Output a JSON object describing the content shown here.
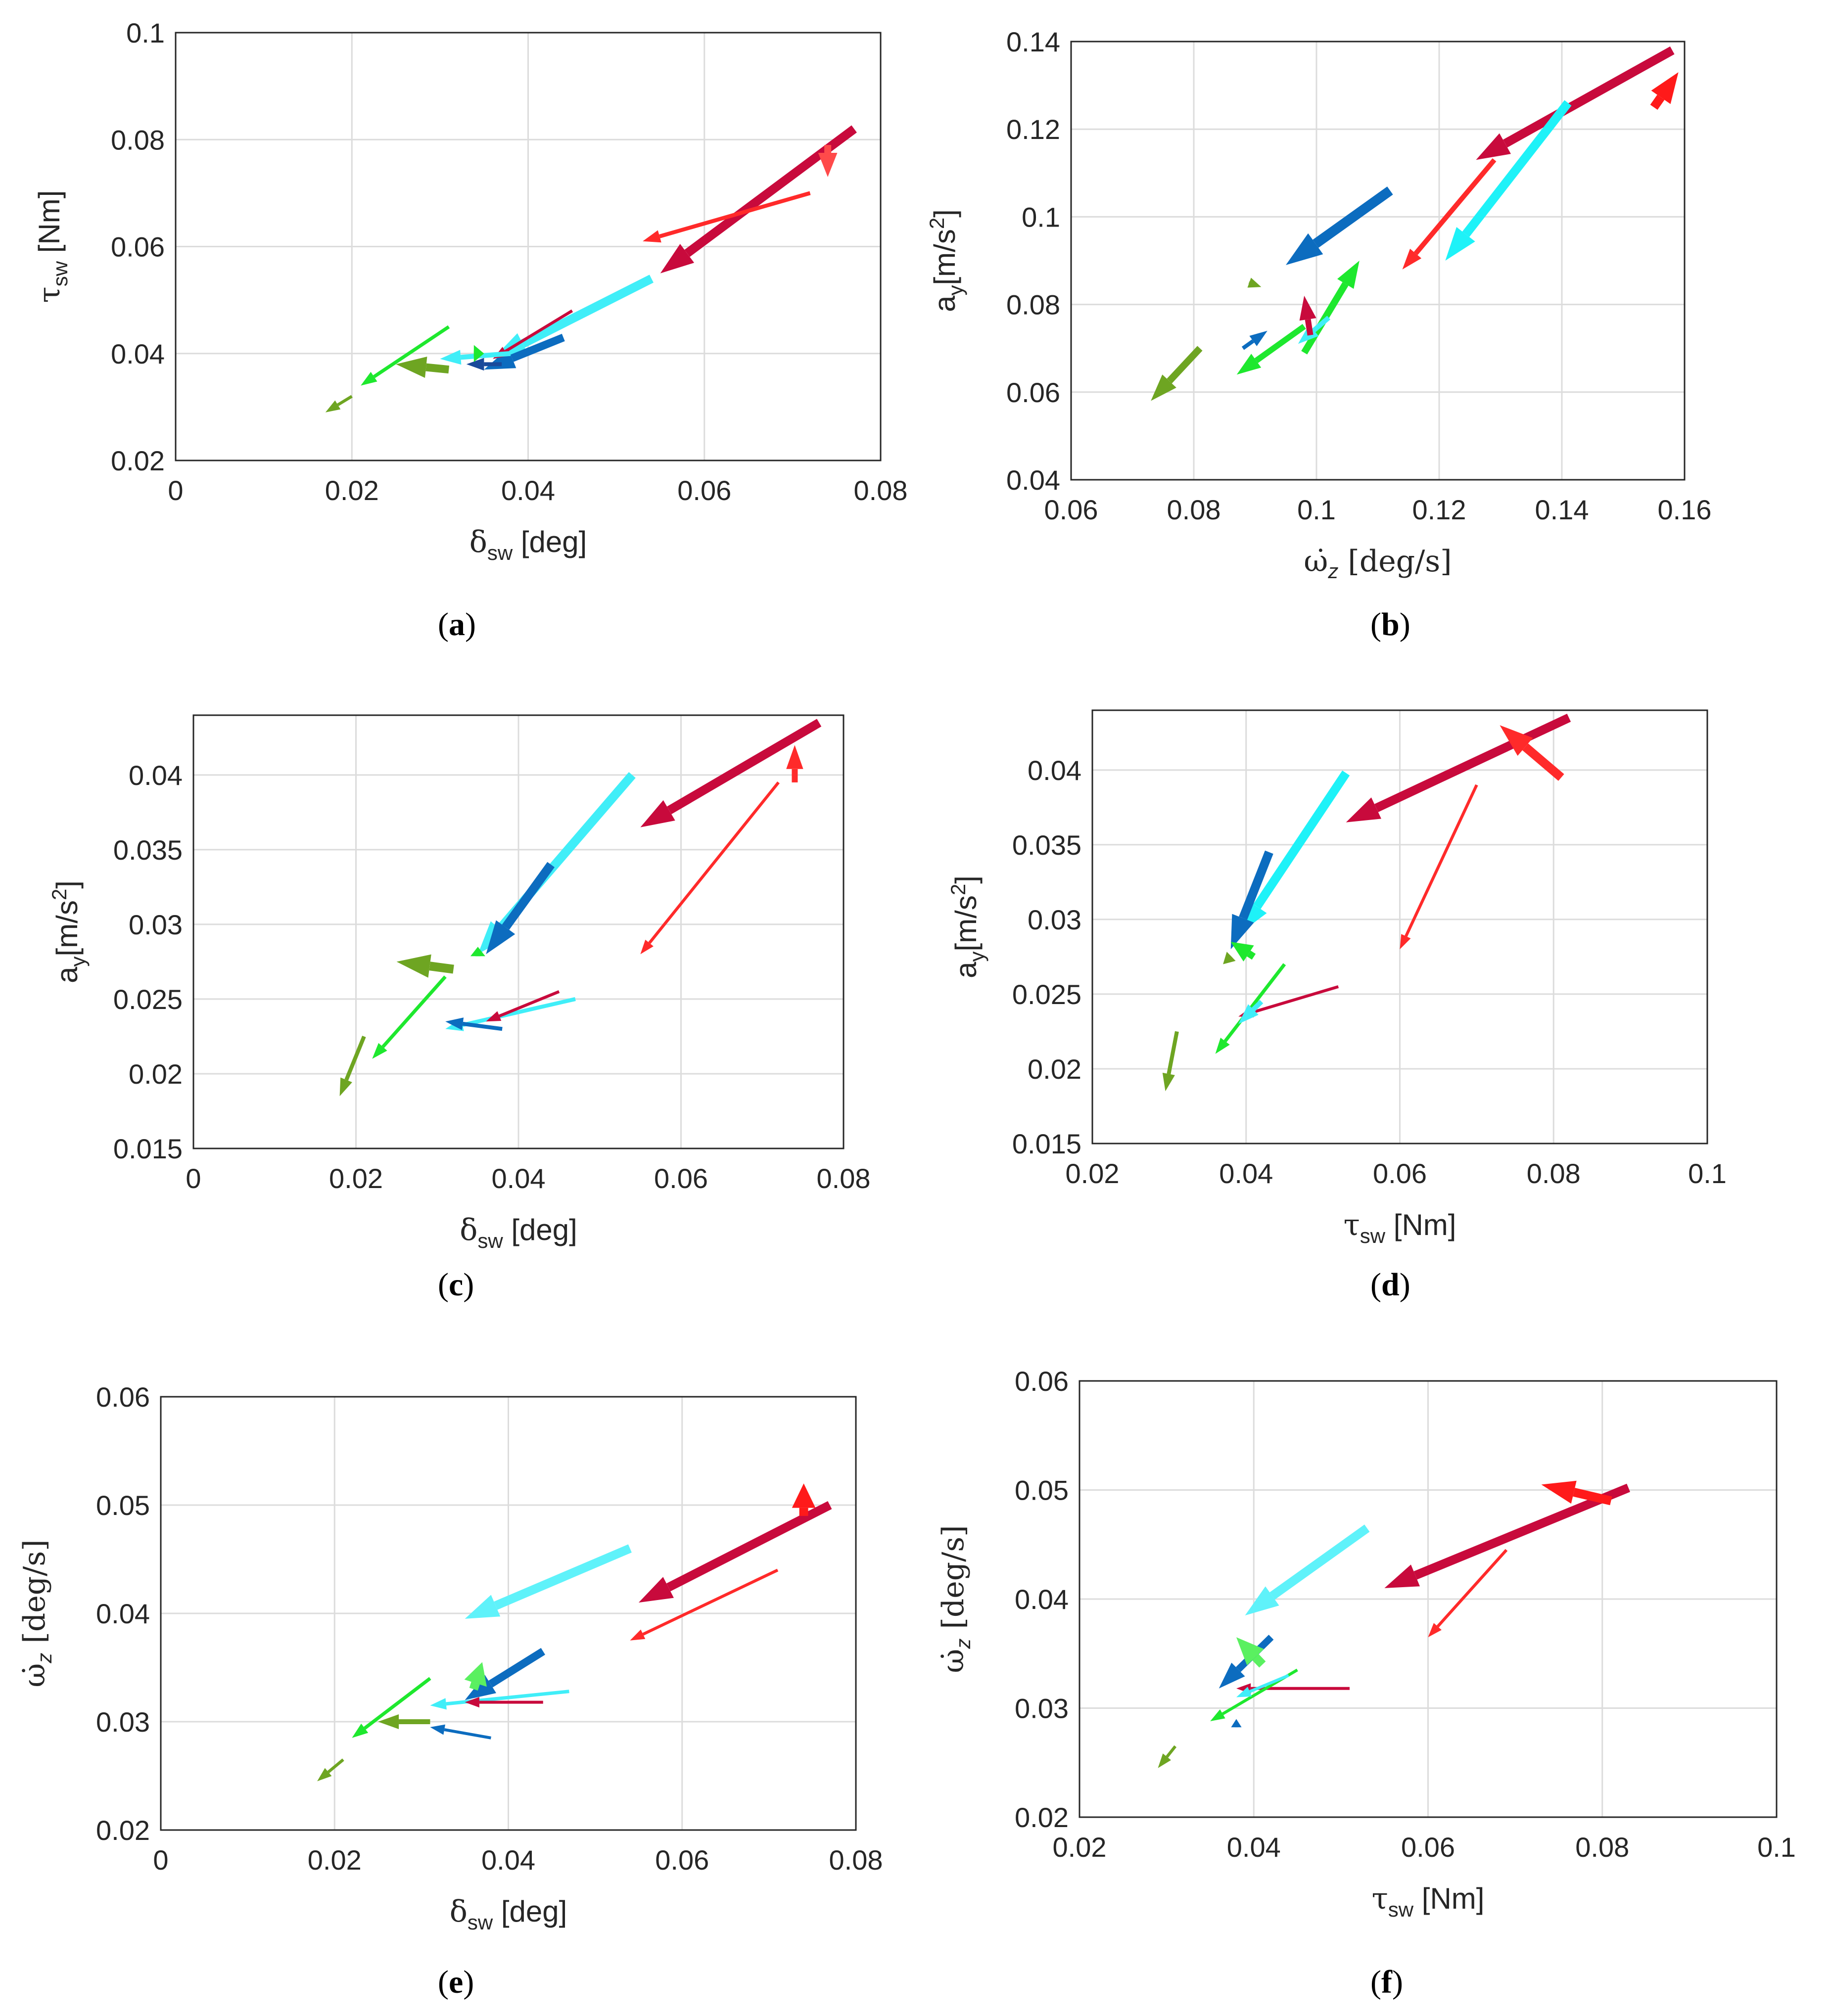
{
  "chart_data": [
    {
      "type": "quiver",
      "panel": "a",
      "caption_letter": "a",
      "xlabel_sym": "δ",
      "xlabel_sub": "sw",
      "xlabel_unit": "[deg]",
      "ylabel_sym": "τ",
      "ylabel_sub": "sw",
      "ylabel_unit": "[Nm]",
      "xlim": [
        0,
        0.08
      ],
      "ylim": [
        0.02,
        0.1
      ],
      "xticks": [
        "0",
        "0.02",
        "0.04",
        "0.06",
        "0.08"
      ],
      "yticks": [
        "0.02",
        "0.04",
        "0.06",
        "0.08",
        "0.1"
      ],
      "arrows": [
        {
          "x1": 0.077,
          "y1": 0.082,
          "x2": 0.055,
          "y2": 0.055,
          "color": "#c80a3c",
          "w": 18
        },
        {
          "x1": 0.072,
          "y1": 0.07,
          "x2": 0.053,
          "y2": 0.061,
          "color": "#ff2a2a",
          "w": 8
        },
        {
          "x1": 0.074,
          "y1": 0.079,
          "x2": 0.074,
          "y2": 0.073,
          "color": "#ff4a4a",
          "w": 14
        },
        {
          "x1": 0.054,
          "y1": 0.054,
          "x2": 0.036,
          "y2": 0.039,
          "color": "#40eef8",
          "w": 18
        },
        {
          "x1": 0.044,
          "y1": 0.043,
          "x2": 0.035,
          "y2": 0.037,
          "color": "#0c6cbf",
          "w": 16
        },
        {
          "x1": 0.045,
          "y1": 0.048,
          "x2": 0.036,
          "y2": 0.039,
          "color": "#c80a3c",
          "w": 6
        },
        {
          "x1": 0.038,
          "y1": 0.04,
          "x2": 0.03,
          "y2": 0.039,
          "color": "#40eef8",
          "w": 10
        },
        {
          "x1": 0.037,
          "y1": 0.038,
          "x2": 0.033,
          "y2": 0.038,
          "color": "#1a4a9a",
          "w": 8
        },
        {
          "x1": 0.031,
          "y1": 0.045,
          "x2": 0.021,
          "y2": 0.034,
          "color": "#1ee82e",
          "w": 7
        },
        {
          "x1": 0.031,
          "y1": 0.037,
          "x2": 0.025,
          "y2": 0.038,
          "color": "#6ea522",
          "w": 16
        },
        {
          "x1": 0.034,
          "y1": 0.04,
          "x2": 0.035,
          "y2": 0.04,
          "color": "#1ee82e",
          "w": 12
        },
        {
          "x1": 0.02,
          "y1": 0.032,
          "x2": 0.017,
          "y2": 0.029,
          "color": "#6ea522",
          "w": 6
        }
      ]
    },
    {
      "type": "quiver",
      "panel": "b",
      "caption_letter": "b",
      "xlabel_math": "ω̇",
      "xlabel_sub": "z",
      "xlabel_unit": "[deg/s]",
      "ylabel_text": "a",
      "ylabel_sub": "y",
      "ylabel_unit": "[m/s",
      "ylabel_sup": "2",
      "ylabel_close": "]",
      "xlim": [
        0.06,
        0.16
      ],
      "ylim": [
        0.04,
        0.14
      ],
      "xticks": [
        "0.06",
        "0.08",
        "0.1",
        "0.12",
        "0.14",
        "0.16"
      ],
      "yticks": [
        "0.04",
        "0.06",
        "0.08",
        "0.1",
        "0.12",
        "0.14"
      ],
      "arrows": [
        {
          "x1": 0.158,
          "y1": 0.138,
          "x2": 0.126,
          "y2": 0.113,
          "color": "#c80a3c",
          "w": 18
        },
        {
          "x1": 0.141,
          "y1": 0.126,
          "x2": 0.121,
          "y2": 0.09,
          "color": "#1ef2f8",
          "w": 18
        },
        {
          "x1": 0.129,
          "y1": 0.113,
          "x2": 0.114,
          "y2": 0.088,
          "color": "#ff2a2a",
          "w": 10
        },
        {
          "x1": 0.155,
          "y1": 0.125,
          "x2": 0.159,
          "y2": 0.133,
          "color": "#ff1a1a",
          "w": 18
        },
        {
          "x1": 0.112,
          "y1": 0.106,
          "x2": 0.095,
          "y2": 0.089,
          "color": "#0c6cbf",
          "w": 20
        },
        {
          "x1": 0.098,
          "y1": 0.069,
          "x2": 0.107,
          "y2": 0.09,
          "color": "#1ee82e",
          "w": 14
        },
        {
          "x1": 0.098,
          "y1": 0.075,
          "x2": 0.087,
          "y2": 0.064,
          "color": "#1ee82e",
          "w": 12
        },
        {
          "x1": 0.102,
          "y1": 0.077,
          "x2": 0.097,
          "y2": 0.071,
          "color": "#40eef8",
          "w": 10
        },
        {
          "x1": 0.099,
          "y1": 0.073,
          "x2": 0.098,
          "y2": 0.082,
          "color": "#c80a3c",
          "w": 12
        },
        {
          "x1": 0.088,
          "y1": 0.07,
          "x2": 0.092,
          "y2": 0.074,
          "color": "#0c6cbf",
          "w": 8
        },
        {
          "x1": 0.089,
          "y1": 0.085,
          "x2": 0.091,
          "y2": 0.084,
          "color": "#6ea522",
          "w": 6
        },
        {
          "x1": 0.081,
          "y1": 0.07,
          "x2": 0.073,
          "y2": 0.058,
          "color": "#6ea522",
          "w": 14
        }
      ]
    },
    {
      "type": "quiver",
      "panel": "c",
      "caption_letter": "c",
      "xlabel_sym": "δ",
      "xlabel_sub": "sw",
      "xlabel_unit": "[deg]",
      "ylabel_text": "a",
      "ylabel_sub": "y",
      "ylabel_unit": "[m/s",
      "ylabel_sup": "2",
      "ylabel_close": "]",
      "xlim": [
        0,
        0.08
      ],
      "ylim": [
        0.015,
        0.044
      ],
      "xticks": [
        "0",
        "0.02",
        "0.04",
        "0.06",
        "0.08"
      ],
      "yticks": [
        "0.015",
        "0.02",
        "0.025",
        "0.03",
        "0.035",
        "0.04"
      ],
      "ytick_values": [
        0.015,
        0.02,
        0.025,
        0.03,
        0.035,
        0.04
      ],
      "arrows": [
        {
          "x1": 0.077,
          "y1": 0.0435,
          "x2": 0.055,
          "y2": 0.0365,
          "color": "#c80a3c",
          "w": 18
        },
        {
          "x1": 0.054,
          "y1": 0.04,
          "x2": 0.035,
          "y2": 0.028,
          "color": "#40eef8",
          "w": 18
        },
        {
          "x1": 0.044,
          "y1": 0.034,
          "x2": 0.036,
          "y2": 0.028,
          "color": "#0c6cbf",
          "w": 18
        },
        {
          "x1": 0.072,
          "y1": 0.0395,
          "x2": 0.055,
          "y2": 0.028,
          "color": "#ff2a2a",
          "w": 6
        },
        {
          "x1": 0.074,
          "y1": 0.0395,
          "x2": 0.074,
          "y2": 0.042,
          "color": "#ff2a2a",
          "w": 12
        },
        {
          "x1": 0.032,
          "y1": 0.027,
          "x2": 0.025,
          "y2": 0.0275,
          "color": "#6ea522",
          "w": 18
        },
        {
          "x1": 0.031,
          "y1": 0.0265,
          "x2": 0.022,
          "y2": 0.021,
          "color": "#1ee82e",
          "w": 7
        },
        {
          "x1": 0.035,
          "y1": 0.028,
          "x2": 0.035,
          "y2": 0.0285,
          "color": "#1ee82e",
          "w": 10
        },
        {
          "x1": 0.047,
          "y1": 0.025,
          "x2": 0.031,
          "y2": 0.023,
          "color": "#40eef8",
          "w": 8
        },
        {
          "x1": 0.045,
          "y1": 0.0255,
          "x2": 0.036,
          "y2": 0.0235,
          "color": "#c80a3c",
          "w": 6
        },
        {
          "x1": 0.038,
          "y1": 0.023,
          "x2": 0.031,
          "y2": 0.0235,
          "color": "#0c6cbf",
          "w": 8
        },
        {
          "x1": 0.021,
          "y1": 0.0225,
          "x2": 0.018,
          "y2": 0.0185,
          "color": "#6ea522",
          "w": 8
        }
      ]
    },
    {
      "type": "quiver",
      "panel": "d",
      "caption_letter": "d",
      "xlabel_sym": "τ",
      "xlabel_sub": "sw",
      "xlabel_unit": "[Nm]",
      "ylabel_text": "a",
      "ylabel_sub": "y",
      "ylabel_unit": "[m/s",
      "ylabel_sup": "2",
      "ylabel_close": "]",
      "xlim": [
        0.02,
        0.1
      ],
      "ylim": [
        0.015,
        0.044
      ],
      "xticks": [
        "0.02",
        "0.04",
        "0.06",
        "0.08",
        "0.1"
      ],
      "yticks": [
        "0.015",
        "0.02",
        "0.025",
        "0.03",
        "0.035",
        "0.04"
      ],
      "ytick_values": [
        0.015,
        0.02,
        0.025,
        0.03,
        0.035,
        0.04
      ],
      "arrows": [
        {
          "x1": 0.082,
          "y1": 0.0435,
          "x2": 0.053,
          "y2": 0.0365,
          "color": "#c80a3c",
          "w": 18
        },
        {
          "x1": 0.081,
          "y1": 0.0395,
          "x2": 0.073,
          "y2": 0.043,
          "color": "#ff2a2a",
          "w": 18
        },
        {
          "x1": 0.053,
          "y1": 0.0398,
          "x2": 0.039,
          "y2": 0.029,
          "color": "#1ef2f8",
          "w": 18
        },
        {
          "x1": 0.043,
          "y1": 0.0345,
          "x2": 0.038,
          "y2": 0.028,
          "color": "#0c6cbf",
          "w": 18
        },
        {
          "x1": 0.07,
          "y1": 0.039,
          "x2": 0.06,
          "y2": 0.028,
          "color": "#ff2a2a",
          "w": 6
        },
        {
          "x1": 0.041,
          "y1": 0.0275,
          "x2": 0.038,
          "y2": 0.0285,
          "color": "#1ee82e",
          "w": 14
        },
        {
          "x1": 0.038,
          "y1": 0.0275,
          "x2": 0.037,
          "y2": 0.027,
          "color": "#6ea522",
          "w": 8
        },
        {
          "x1": 0.045,
          "y1": 0.027,
          "x2": 0.036,
          "y2": 0.021,
          "color": "#1ee82e",
          "w": 7
        },
        {
          "x1": 0.052,
          "y1": 0.0255,
          "x2": 0.039,
          "y2": 0.0235,
          "color": "#c80a3c",
          "w": 6
        },
        {
          "x1": 0.042,
          "y1": 0.0245,
          "x2": 0.039,
          "y2": 0.023,
          "color": "#40eef8",
          "w": 10
        },
        {
          "x1": 0.031,
          "y1": 0.0225,
          "x2": 0.0295,
          "y2": 0.0185,
          "color": "#6ea522",
          "w": 8
        }
      ]
    },
    {
      "type": "quiver",
      "panel": "e",
      "caption_letter": "e",
      "xlabel_sym": "δ",
      "xlabel_sub": "sw",
      "xlabel_unit": "[deg]",
      "ylabel_math": "ω̇",
      "ylabel_sub": "z",
      "ylabel_unit": "[deg/s]",
      "xlim": [
        0,
        0.08
      ],
      "ylim": [
        0.02,
        0.06
      ],
      "xticks": [
        "0",
        "0.02",
        "0.04",
        "0.06",
        "0.08"
      ],
      "yticks": [
        "0.02",
        "0.03",
        "0.04",
        "0.05",
        "0.06"
      ],
      "arrows": [
        {
          "x1": 0.077,
          "y1": 0.05,
          "x2": 0.055,
          "y2": 0.041,
          "color": "#c80a3c",
          "w": 18
        },
        {
          "x1": 0.074,
          "y1": 0.049,
          "x2": 0.074,
          "y2": 0.052,
          "color": "#ff1a1a",
          "w": 18
        },
        {
          "x1": 0.054,
          "y1": 0.046,
          "x2": 0.035,
          "y2": 0.0395,
          "color": "#5ff2fa",
          "w": 18
        },
        {
          "x1": 0.071,
          "y1": 0.044,
          "x2": 0.054,
          "y2": 0.0375,
          "color": "#ff2a2a",
          "w": 6
        },
        {
          "x1": 0.044,
          "y1": 0.0365,
          "x2": 0.035,
          "y2": 0.032,
          "color": "#0c6cbf",
          "w": 16
        },
        {
          "x1": 0.036,
          "y1": 0.033,
          "x2": 0.037,
          "y2": 0.0355,
          "color": "#5af060",
          "w": 18
        },
        {
          "x1": 0.047,
          "y1": 0.0328,
          "x2": 0.031,
          "y2": 0.0315,
          "color": "#40eef8",
          "w": 7
        },
        {
          "x1": 0.044,
          "y1": 0.0318,
          "x2": 0.035,
          "y2": 0.0318,
          "color": "#c80a3c",
          "w": 6
        },
        {
          "x1": 0.038,
          "y1": 0.0285,
          "x2": 0.031,
          "y2": 0.0295,
          "color": "#0c6cbf",
          "w": 6
        },
        {
          "x1": 0.031,
          "y1": 0.034,
          "x2": 0.022,
          "y2": 0.0285,
          "color": "#1ee82e",
          "w": 7
        },
        {
          "x1": 0.031,
          "y1": 0.03,
          "x2": 0.025,
          "y2": 0.03,
          "color": "#6ea522",
          "w": 10
        },
        {
          "x1": 0.021,
          "y1": 0.0265,
          "x2": 0.018,
          "y2": 0.0245,
          "color": "#6ea522",
          "w": 6
        }
      ]
    },
    {
      "type": "quiver",
      "panel": "f",
      "caption_letter": "f",
      "xlabel_sym": "τ",
      "xlabel_sub": "sw",
      "xlabel_unit": "[Nm]",
      "ylabel_math": "ω̇",
      "ylabel_sub": "z",
      "ylabel_unit": "[deg/s]",
      "xlim": [
        0.02,
        0.1
      ],
      "ylim": [
        0.02,
        0.06
      ],
      "xticks": [
        "0.02",
        "0.04",
        "0.06",
        "0.08",
        "0.1"
      ],
      "yticks": [
        "0.02",
        "0.03",
        "0.04",
        "0.05",
        "0.06"
      ],
      "arrows": [
        {
          "x1": 0.083,
          "y1": 0.0502,
          "x2": 0.055,
          "y2": 0.041,
          "color": "#c80a3c",
          "w": 18
        },
        {
          "x1": 0.081,
          "y1": 0.049,
          "x2": 0.073,
          "y2": 0.0505,
          "color": "#ff1a1a",
          "w": 18
        },
        {
          "x1": 0.053,
          "y1": 0.0465,
          "x2": 0.039,
          "y2": 0.0385,
          "color": "#5ff2fa",
          "w": 18
        },
        {
          "x1": 0.069,
          "y1": 0.0445,
          "x2": 0.06,
          "y2": 0.0365,
          "color": "#ff2a2a",
          "w": 6
        },
        {
          "x1": 0.042,
          "y1": 0.0365,
          "x2": 0.036,
          "y2": 0.0318,
          "color": "#0c6cbf",
          "w": 14
        },
        {
          "x1": 0.041,
          "y1": 0.034,
          "x2": 0.038,
          "y2": 0.0365,
          "color": "#5af060",
          "w": 18
        },
        {
          "x1": 0.051,
          "y1": 0.0318,
          "x2": 0.038,
          "y2": 0.0318,
          "color": "#c80a3c",
          "w": 6
        },
        {
          "x1": 0.045,
          "y1": 0.0335,
          "x2": 0.035,
          "y2": 0.0288,
          "color": "#1ee82e",
          "w": 6
        },
        {
          "x1": 0.044,
          "y1": 0.033,
          "x2": 0.038,
          "y2": 0.031,
          "color": "#40eef8",
          "w": 6
        },
        {
          "x1": 0.038,
          "y1": 0.0285,
          "x2": 0.038,
          "y2": 0.029,
          "color": "#0c6cbf",
          "w": 6
        },
        {
          "x1": 0.031,
          "y1": 0.0265,
          "x2": 0.029,
          "y2": 0.0245,
          "color": "#6ea522",
          "w": 6
        }
      ]
    }
  ]
}
